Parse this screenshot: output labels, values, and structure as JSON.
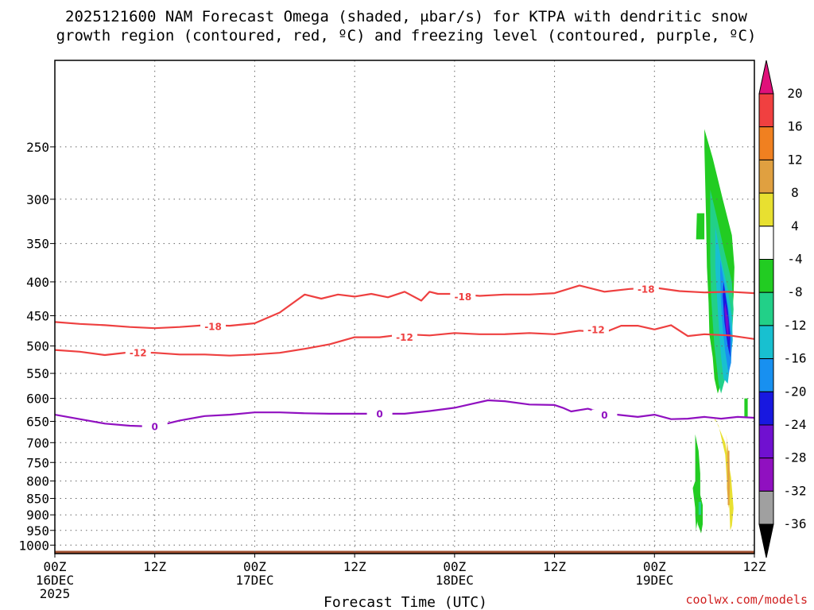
{
  "chart_data": {
    "type": "time-height contour",
    "title": "2025121600 NAM Forecast Omega (shaded, μbar/s) for KTPA with dendritic snow growth region (contoured, red, ºC) and freezing level (contoured, purple, ºC)",
    "title_lines": [
      "2025121600 NAM Forecast Omega (shaded, μbar/s) for KTPA with dendritic snow",
      "growth region (contoured, red, ºC) and freezing level (contoured, purple, ºC)"
    ],
    "xlabel": "Forecast Time (UTC)",
    "ylabel": "",
    "x_units": "forecast hour",
    "xlim": [
      0,
      84
    ],
    "y_units": "hPa",
    "ylim": [
      1030,
      185
    ],
    "y_scale": "log",
    "y_ticks": [
      250,
      300,
      350,
      400,
      450,
      500,
      550,
      600,
      650,
      700,
      750,
      800,
      850,
      900,
      950,
      1000
    ],
    "x_ticks": [
      {
        "h": 0,
        "lines": [
          "00Z",
          "16DEC",
          "2025"
        ]
      },
      {
        "h": 12,
        "lines": [
          "12Z"
        ]
      },
      {
        "h": 24,
        "lines": [
          "00Z",
          "17DEC"
        ]
      },
      {
        "h": 36,
        "lines": [
          "12Z"
        ]
      },
      {
        "h": 48,
        "lines": [
          "00Z",
          "18DEC"
        ]
      },
      {
        "h": 60,
        "lines": [
          "12Z"
        ]
      },
      {
        "h": 72,
        "lines": [
          "00Z",
          "19DEC"
        ]
      },
      {
        "h": 84,
        "lines": [
          "12Z"
        ]
      }
    ],
    "grid": true,
    "series": [
      {
        "name": "-18",
        "color": "#ee4040",
        "x": [
          0,
          3,
          6,
          9,
          12,
          15,
          18,
          21,
          24,
          27,
          30,
          32,
          34,
          36,
          38,
          40,
          42,
          44,
          45,
          46,
          48,
          51,
          54,
          57,
          60,
          63,
          66,
          69,
          72,
          75,
          78,
          81,
          84
        ],
        "y": [
          460,
          463,
          465,
          468,
          470,
          468,
          465,
          466,
          462,
          445,
          418,
          424,
          418,
          421,
          417,
          422,
          414,
          427,
          414,
          417,
          417,
          420,
          418,
          418,
          416,
          405,
          414,
          410,
          408,
          413,
          415,
          414,
          416
        ],
        "labels": [
          {
            "x": 19,
            "y": 467,
            "text": "-18"
          },
          {
            "x": 49,
            "y": 421,
            "text": "-18"
          },
          {
            "x": 71,
            "y": 410,
            "text": "-18"
          }
        ]
      },
      {
        "name": "-12",
        "color": "#ee4040",
        "x": [
          0,
          3,
          6,
          9,
          12,
          15,
          18,
          21,
          24,
          27,
          30,
          33,
          36,
          39,
          42,
          45,
          48,
          51,
          54,
          57,
          60,
          63,
          66,
          68,
          70,
          72,
          74,
          76,
          78,
          81,
          84
        ],
        "y": [
          507,
          510,
          516,
          511,
          512,
          515,
          515,
          517,
          515,
          512,
          505,
          497,
          485,
          485,
          480,
          482,
          478,
          480,
          480,
          478,
          480,
          474,
          477,
          466,
          466,
          472,
          465,
          483,
          480,
          482,
          488
        ],
        "labels": [
          {
            "x": 10,
            "y": 512,
            "text": "-12"
          },
          {
            "x": 42,
            "y": 485,
            "text": "-12"
          },
          {
            "x": 65,
            "y": 472,
            "text": "-12"
          }
        ]
      },
      {
        "name": "0",
        "color": "#9010c0",
        "x": [
          0,
          3,
          6,
          9,
          12,
          15,
          18,
          21,
          24,
          27,
          30,
          33,
          36,
          39,
          42,
          45,
          48,
          50,
          52,
          54,
          57,
          60,
          61,
          62,
          64,
          66,
          68,
          70,
          72,
          74,
          76,
          78,
          80,
          82,
          84
        ],
        "y": [
          635,
          645,
          655,
          660,
          662,
          648,
          638,
          635,
          630,
          630,
          632,
          633,
          633,
          633,
          633,
          627,
          620,
          612,
          604,
          606,
          613,
          614,
          620,
          628,
          622,
          632,
          636,
          640,
          635,
          645,
          644,
          640,
          644,
          640,
          642
        ],
        "labels": [
          {
            "x": 12,
            "y": 662,
            "text": "0"
          },
          {
            "x": 39,
            "y": 633,
            "text": "0"
          },
          {
            "x": 66,
            "y": 636,
            "text": "0"
          }
        ]
      }
    ],
    "shaded_field": {
      "name": "Omega",
      "units": "μbar/s",
      "regions": [
        {
          "value": -8,
          "color": "#22cc22",
          "h": [
            78.0,
            79.0,
            80.2,
            81.3,
            81.6,
            81.5,
            81.2,
            80.8,
            80.2,
            79.8,
            79.6,
            79.2,
            79.0,
            78.6,
            78.5,
            78.3,
            78.2,
            78.0
          ]
        },
        {
          "value": -12,
          "color": "#22d088",
          "h": [
            78.7,
            79.5,
            80.4,
            81.3,
            81.5,
            81.3,
            81.0,
            80.5,
            80.0,
            79.7,
            79.5,
            79.2,
            79.0,
            78.8,
            78.7
          ]
        },
        {
          "value": -16,
          "color": "#18c0d0",
          "h": [
            79.3,
            80.0,
            80.8,
            81.3,
            81.4,
            81.1,
            80.8,
            80.3,
            80.0,
            79.8,
            79.6,
            79.3
          ]
        },
        {
          "value": -20,
          "color": "#1890f0",
          "h": [
            79.9,
            80.5,
            81.0,
            81.3,
            81.2,
            80.9,
            80.5,
            80.2,
            80.0,
            79.9
          ]
        },
        {
          "value": -24,
          "color": "#1818e0",
          "h": [
            80.3,
            80.8,
            81.1,
            81.1,
            80.8,
            80.4,
            80.2
          ]
        },
        {
          "value": -28,
          "color": "#7010d0",
          "h": [
            80.5,
            80.9,
            80.9,
            80.6,
            80.4
          ]
        },
        {
          "value": -8,
          "color": "#22cc22",
          "h": [
            77.1,
            78.0,
            78.0,
            77.0
          ]
        },
        {
          "value": -8,
          "color": "#22cc22",
          "h": [
            76.9,
            77.3,
            77.5,
            77.5,
            77.3,
            77.1,
            77.0,
            76.9
          ]
        },
        {
          "value": -8,
          "color": "#22cc22",
          "h": [
            76.9,
            77.4,
            77.8,
            77.8,
            77.6,
            77.2,
            76.9,
            76.6
          ]
        },
        {
          "value": -12,
          "color": "#22d088",
          "h": [
            77.3,
            77.6,
            77.6,
            77.3
          ]
        },
        {
          "value": -8,
          "color": "#22cc22",
          "h": [
            82.8,
            83.2,
            83.2,
            82.8
          ]
        },
        {
          "value": 4,
          "color": "#e8e030",
          "h": [
            79.2,
            80.5,
            81.2,
            81.5,
            81.3,
            81.1,
            81.0,
            80.7,
            80.5,
            79.7,
            79.4,
            79.3
          ]
        },
        {
          "value": 8,
          "color": "#e8c040",
          "h": [
            80.6,
            81.0,
            81.1,
            80.9,
            80.7,
            80.7
          ]
        },
        {
          "value": 12,
          "color": "#e0a040",
          "h": [
            80.8,
            81.0,
            81.0,
            80.8
          ]
        }
      ]
    },
    "colorbar": {
      "levels": [
        20,
        16,
        12,
        8,
        4,
        -4,
        -8,
        -12,
        -16,
        -20,
        -24,
        -28,
        -32,
        -36
      ],
      "colors": [
        "#e0107a",
        "#f04040",
        "#f08020",
        "#e0a040",
        "#e8e030",
        "#ffffff",
        "#22cc22",
        "#22d088",
        "#18c0d0",
        "#1890f0",
        "#1818e0",
        "#7010d0",
        "#9010c0",
        "#a0a0a0",
        "#000000"
      ]
    },
    "terrain": {
      "color": "#a05030",
      "surface_hPa": 1020
    }
  },
  "credit": "coolwx.com/models"
}
